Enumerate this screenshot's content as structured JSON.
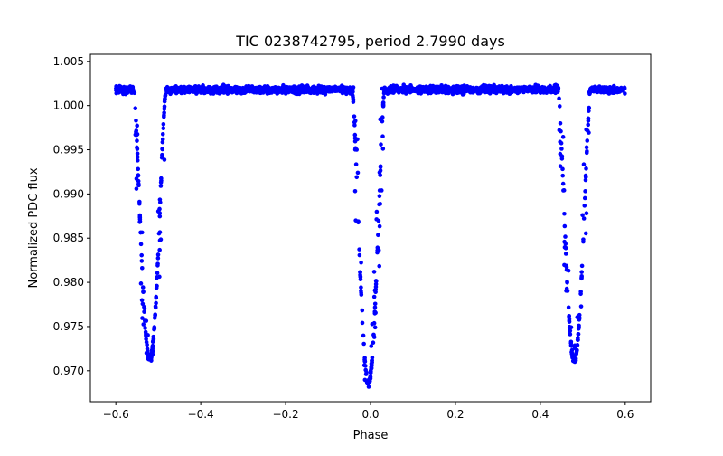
{
  "chart_data": {
    "type": "scatter",
    "title": "TIC 0238742795, period 2.7990 days",
    "xlabel": "Phase",
    "ylabel": "Normalized PDC flux",
    "xlim": [
      -0.66,
      0.66
    ],
    "ylim": [
      0.9665,
      1.0058
    ],
    "grid": false,
    "legend": "none",
    "marker_color": "#0000ff",
    "x_ticks": [
      -0.6,
      -0.4,
      -0.2,
      0.0,
      0.2,
      0.4,
      0.6
    ],
    "x_tick_labels": [
      "−0.6",
      "−0.4",
      "−0.2",
      "0.0",
      "0.2",
      "0.4",
      "0.6"
    ],
    "y_ticks": [
      0.97,
      0.975,
      0.98,
      0.985,
      0.99,
      0.995,
      1.0,
      1.005
    ],
    "y_tick_labels": [
      "0.970",
      "0.975",
      "0.980",
      "0.985",
      "0.990",
      "0.995",
      "1.000",
      "1.005"
    ],
    "phase_range": [
      -0.6,
      0.6
    ],
    "baseline_flux": 1.0018,
    "eclipses": [
      {
        "center_phase": -0.52,
        "min_flux": 0.9712,
        "half_width": 0.038
      },
      {
        "center_phase": -0.005,
        "min_flux": 0.9686,
        "half_width": 0.038
      },
      {
        "center_phase": 0.48,
        "min_flux": 0.9712,
        "half_width": 0.038
      }
    ]
  }
}
